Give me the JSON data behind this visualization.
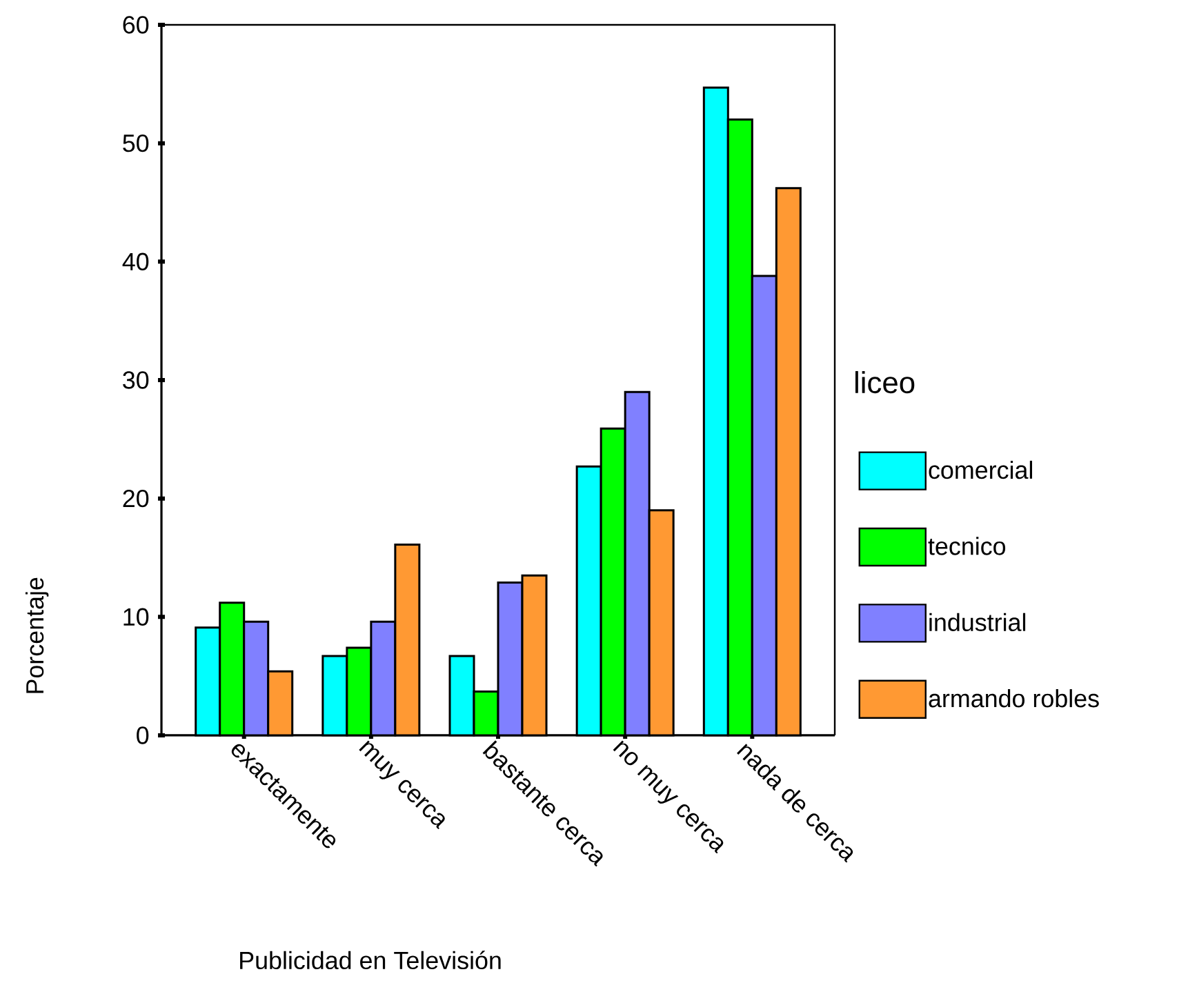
{
  "chart_data": {
    "type": "bar",
    "xlabel": "Publicidad en Televisión",
    "ylabel": "Porcentaje",
    "legend_title": "liceo",
    "legend": "right",
    "categories": [
      "exactamente",
      "muy cerca",
      "bastante cerca",
      "no muy cerca",
      "nada de cerca"
    ],
    "series": [
      {
        "name": "comercial",
        "color": "#00ffff",
        "values": [
          9.1,
          6.7,
          6.7,
          22.7,
          54.7
        ]
      },
      {
        "name": "tecnico",
        "color": "#00ff00",
        "values": [
          11.2,
          7.4,
          3.7,
          25.9,
          52.0
        ]
      },
      {
        "name": "industrial",
        "color": "#8080ff",
        "values": [
          9.6,
          9.6,
          12.9,
          29.0,
          38.8
        ]
      },
      {
        "name": "armando robles",
        "color": "#ff9933",
        "values": [
          5.4,
          16.1,
          13.5,
          19.0,
          46.2
        ]
      }
    ],
    "ylim": [
      0,
      60
    ],
    "yticks": [
      0,
      10,
      20,
      30,
      40,
      50,
      60
    ]
  }
}
